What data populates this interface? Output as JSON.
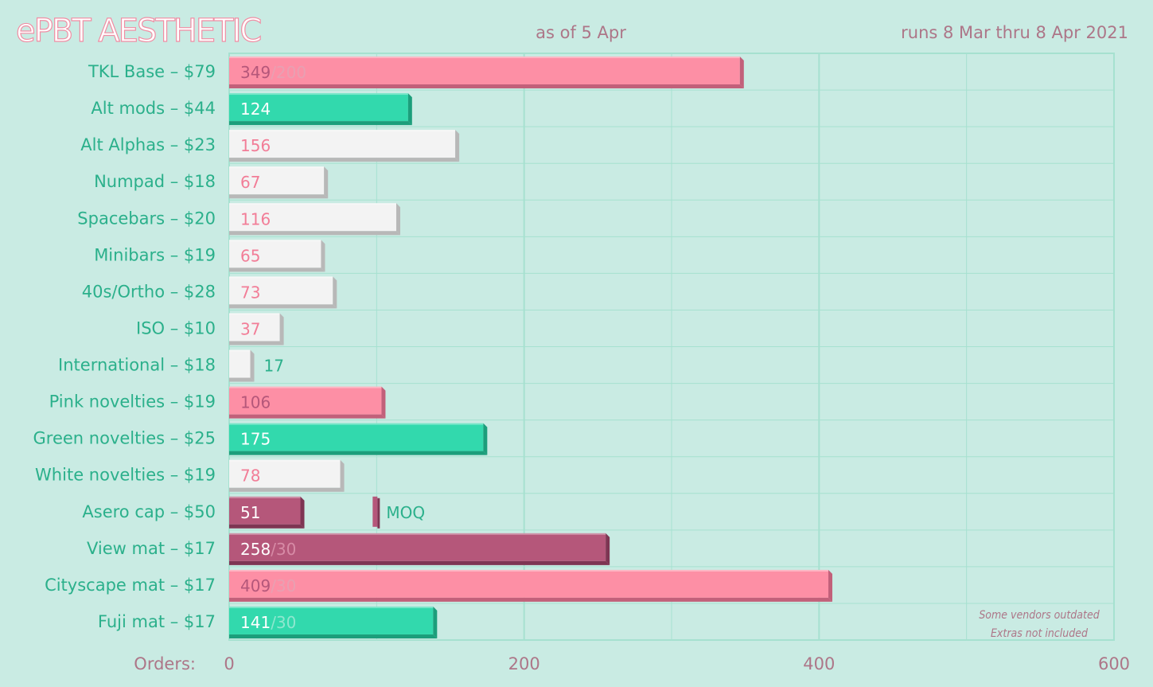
{
  "chart_data": {
    "type": "bar",
    "orientation": "horizontal",
    "title": "ePBT AESTHETIC",
    "subtitle_center": "as of 5 Apr",
    "subtitle_right": "runs 8 Mar thru 8 Apr 2021",
    "xlabel": "Orders:",
    "xlim": [
      0,
      600
    ],
    "x_ticks": [
      0,
      200,
      400,
      600
    ],
    "x_ticks_labeled": [
      0,
      200,
      400,
      600
    ],
    "grid": true,
    "categories": [
      "TKL Base – $79",
      "Alt mods – $44",
      "Alt Alphas – $23",
      "Numpad – $18",
      "Spacebars – $20",
      "Minibars – $19",
      "40s/Ortho – $28",
      "ISO – $10",
      "International – $18",
      "Pink novelties – $19",
      "Green novelties – $25",
      "White novelties – $19",
      "Asero cap – $50",
      "View mat – $17",
      "Cityscape mat – $17",
      "Fuji mat – $17"
    ],
    "values": [
      349,
      124,
      156,
      67,
      116,
      65,
      73,
      37,
      17,
      106,
      175,
      78,
      51,
      258,
      409,
      141
    ],
    "targets": [
      "200",
      null,
      null,
      null,
      null,
      null,
      null,
      null,
      null,
      null,
      null,
      null,
      null,
      "30",
      "30",
      "30"
    ],
    "colors": [
      "pink",
      "green",
      "white",
      "white",
      "white",
      "white",
      "white",
      "white",
      "white",
      "pink",
      "green",
      "white",
      "mauve",
      "mauve",
      "pink",
      "green"
    ],
    "moq_marker": {
      "row": 12,
      "value": 100,
      "label": "MOQ"
    },
    "notes": [
      "Some vendors outdated",
      "Extras not included"
    ]
  },
  "palette": {
    "background": "#c9ebe3",
    "grid": "#a6e1d0",
    "pink": "#fd8fa5",
    "pink_dark": "#c2607a",
    "green": "#32d9ad",
    "green_dark": "#1c9e7b",
    "white": "#f3f3f3",
    "white_dark": "#b8b8b8",
    "mauve": "#b5577a",
    "mauve_dark": "#7e3553",
    "text_green": "#2bb08b",
    "text_mauve": "#ad7688",
    "text_pink": "#f27d97"
  }
}
